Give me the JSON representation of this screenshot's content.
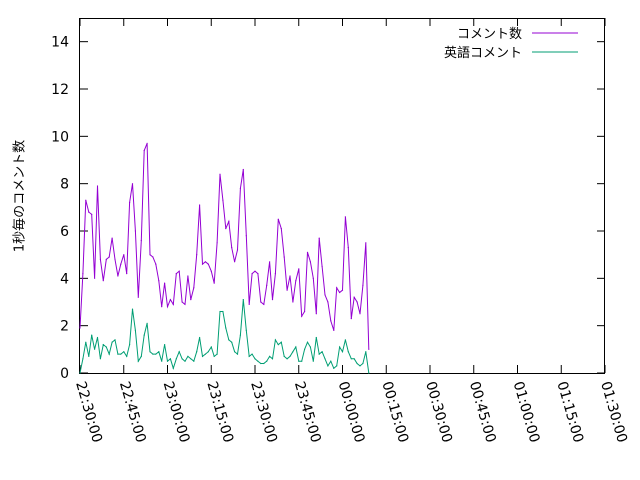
{
  "chart_data": {
    "type": "line",
    "ylabel": "1秒毎のコメント数",
    "xlabel": "",
    "grid": false,
    "legend_position": "top-right",
    "xlim": [
      "22:30:00",
      "01:30:00"
    ],
    "ylim": [
      0,
      15
    ],
    "x_ticks": [
      "22:30:00",
      "22:45:00",
      "23:00:00",
      "23:15:00",
      "23:30:00",
      "23:45:00",
      "00:00:00",
      "00:15:00",
      "00:30:00",
      "00:45:00",
      "01:00:00",
      "01:15:00",
      "01:30:00"
    ],
    "y_ticks": [
      "0",
      "2",
      "4",
      "6",
      "8",
      "10",
      "12",
      "14"
    ],
    "x_sample_step_minutes": 1,
    "x_start": "22:30:00",
    "series": [
      {
        "name": "コメント数",
        "color": "#9400d3",
        "values": [
          1.9,
          4.2,
          7.3,
          6.8,
          6.7,
          4.0,
          7.9,
          4.8,
          3.9,
          4.8,
          4.9,
          5.7,
          4.8,
          4.1,
          4.6,
          5.0,
          4.2,
          7.2,
          8.0,
          6.0,
          3.2,
          5.6,
          9.4,
          9.7,
          5.0,
          4.9,
          4.6,
          3.9,
          2.8,
          3.8,
          2.8,
          3.1,
          2.9,
          4.2,
          4.3,
          3.0,
          2.9,
          4.1,
          3.1,
          3.6,
          5.0,
          7.1,
          4.6,
          4.7,
          4.6,
          4.3,
          3.8,
          5.5,
          8.4,
          7.3,
          6.1,
          6.4,
          5.3,
          4.7,
          5.2,
          7.8,
          8.6,
          5.8,
          2.9,
          4.2,
          4.3,
          4.2,
          3.0,
          2.9,
          3.7,
          4.7,
          3.1,
          4.2,
          6.5,
          6.1,
          4.9,
          3.5,
          4.1,
          3.0,
          3.9,
          4.4,
          2.4,
          2.6,
          5.1,
          4.7,
          4.0,
          2.5,
          5.7,
          4.5,
          3.3,
          3.0,
          2.2,
          1.8,
          3.6,
          3.4,
          3.5,
          6.6,
          5.3,
          2.3,
          3.2,
          3.0,
          2.5,
          3.7,
          5.5,
          1.0
        ]
      },
      {
        "name": "英語コメント",
        "color": "#009e73",
        "values": [
          0.0,
          0.6,
          1.3,
          0.7,
          1.6,
          1.0,
          1.5,
          0.6,
          1.2,
          1.1,
          0.8,
          1.3,
          1.4,
          0.8,
          0.8,
          0.9,
          0.7,
          1.2,
          2.7,
          1.8,
          0.5,
          0.7,
          1.6,
          2.1,
          0.9,
          0.8,
          0.8,
          0.9,
          0.5,
          1.2,
          0.5,
          0.6,
          0.2,
          0.6,
          0.9,
          0.6,
          0.5,
          0.7,
          0.6,
          0.5,
          0.9,
          1.5,
          0.7,
          0.8,
          0.9,
          1.1,
          0.7,
          0.8,
          2.6,
          2.6,
          1.9,
          1.4,
          1.3,
          0.9,
          0.8,
          1.6,
          3.1,
          1.8,
          0.7,
          0.8,
          0.6,
          0.5,
          0.4,
          0.4,
          0.5,
          0.7,
          0.6,
          1.4,
          1.2,
          1.3,
          0.7,
          0.6,
          0.7,
          0.9,
          1.1,
          0.5,
          0.5,
          1.0,
          1.3,
          1.1,
          0.5,
          1.5,
          0.8,
          0.9,
          0.6,
          0.3,
          0.5,
          0.2,
          0.3,
          1.1,
          0.9,
          1.4,
          0.9,
          0.6,
          0.6,
          0.4,
          0.3,
          0.4,
          0.9,
          0.0
        ]
      }
    ]
  }
}
